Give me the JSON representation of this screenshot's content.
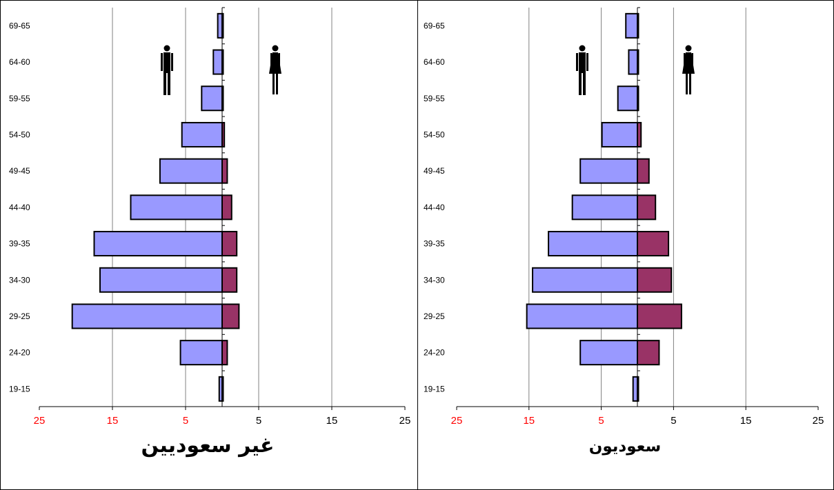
{
  "colors": {
    "male": "#9999ff",
    "female": "#993366",
    "negative_tick_label": "#ff0000",
    "positive_tick_label": "#000000",
    "grid": "#808080"
  },
  "icons": {
    "male": "man-silhouette-icon",
    "female": "woman-silhouette-icon"
  },
  "chart_data": [
    {
      "type": "bar",
      "orientation": "horizontal",
      "layout": "population-pyramid",
      "title": "غير سعوديين",
      "categories": [
        "19-15",
        "24-20",
        "29-25",
        "34-30",
        "39-35",
        "44-40",
        "49-45",
        "54-50",
        "59-55",
        "64-60",
        "69-65"
      ],
      "series": [
        {
          "values": [
            0.4,
            5.7,
            20.5,
            16.7,
            17.5,
            12.5,
            8.5,
            5.5,
            2.8,
            1.2,
            0.6
          ]
        },
        {
          "values": [
            0.1,
            0.7,
            2.3,
            2.0,
            2.0,
            1.3,
            0.7,
            0.3,
            0.1,
            0.05,
            0.05
          ]
        }
      ],
      "x_axis": {
        "min": -25,
        "max": 25,
        "tick_values": [
          -25,
          -15,
          -5,
          5,
          15,
          25
        ],
        "tick_labels": [
          "25",
          "15",
          "5",
          "5",
          "15",
          "25"
        ]
      },
      "grid": "vertical"
    },
    {
      "type": "bar",
      "orientation": "horizontal",
      "layout": "population-pyramid",
      "title": "سعوديون",
      "categories": [
        "19-15",
        "24-20",
        "29-25",
        "34-30",
        "39-35",
        "44-40",
        "49-45",
        "54-50",
        "59-55",
        "64-60",
        "69-65"
      ],
      "series": [
        {
          "values": [
            0.6,
            7.9,
            15.3,
            14.5,
            12.3,
            9.0,
            7.9,
            4.9,
            2.7,
            1.2,
            1.6
          ]
        },
        {
          "values": [
            0.1,
            3.0,
            6.1,
            4.7,
            4.3,
            2.5,
            1.6,
            0.5,
            0.1,
            0.05,
            0.1
          ]
        }
      ],
      "x_axis": {
        "min": -25,
        "max": 25,
        "tick_values": [
          -25,
          -15,
          -5,
          5,
          15,
          25
        ],
        "tick_labels": [
          "25",
          "15",
          "5",
          "5",
          "15",
          "25"
        ]
      },
      "grid": "vertical"
    }
  ]
}
